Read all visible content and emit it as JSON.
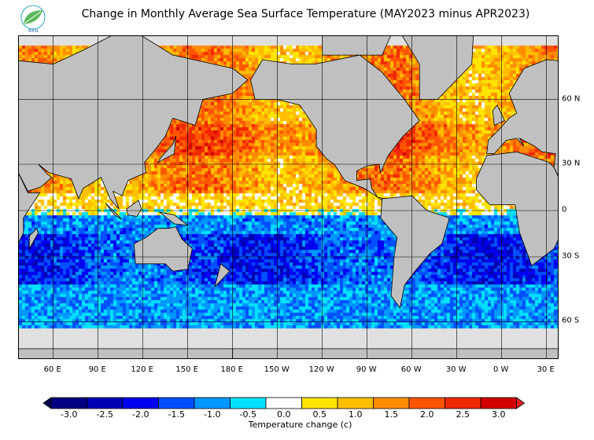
{
  "title": "Change in Monthly Average Sea Surface Temperature (MAY2023 minus APR2023)",
  "logo": {
    "text": "สสน",
    "color": "#4caf50"
  },
  "map": {
    "projection": "mercator",
    "lon_labels": [
      "60 E",
      "90 E",
      "120 E",
      "150 E",
      "180 E",
      "150 W",
      "120 W",
      "90 W",
      "60 W",
      "30 W",
      "0 W",
      "30 E"
    ],
    "lat_labels": [
      "60 N",
      "30 N",
      "0",
      "30 S",
      "60 S"
    ],
    "land_color": "#c0c0c0",
    "ice_color": "#e0e0e0"
  },
  "colorbar": {
    "label": "Temperature change  (c)",
    "ticks": [
      "-3.0",
      "-2.5",
      "-2.0",
      "-1.5",
      "-1.0",
      "-0.5",
      "0.0",
      "0.5",
      "1.0",
      "1.5",
      "2.0",
      "2.5",
      "3.0"
    ],
    "colors": [
      "#000080",
      "#0000b4",
      "#0000f0",
      "#0050ff",
      "#0096ff",
      "#00e1ff",
      "#ffffff",
      "#ffe600",
      "#ffbe00",
      "#ff8c00",
      "#ff5500",
      "#f02800",
      "#d20000"
    ],
    "under_color": "#000050",
    "over_color": "#e62020"
  }
}
